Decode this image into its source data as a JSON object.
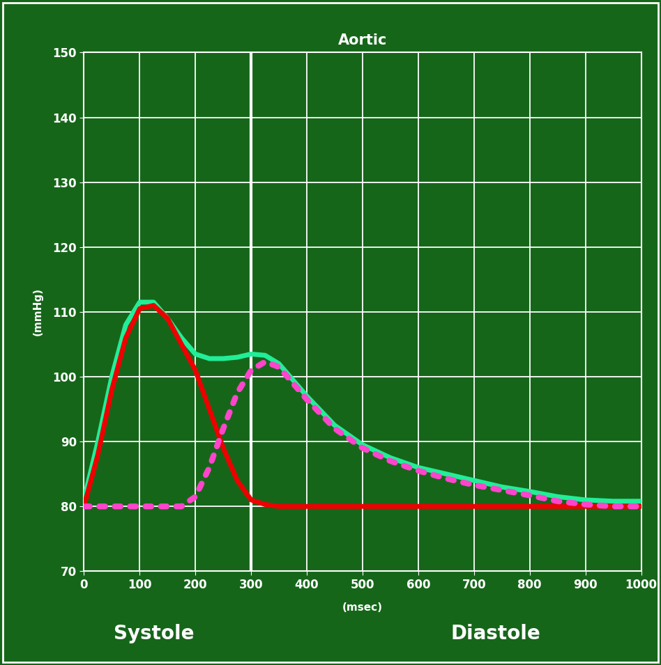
{
  "chart_data": {
    "type": "line",
    "title": "Aortic",
    "x_label": "(msec)",
    "y_label": "(mmHg)",
    "annotations": [
      "Systole",
      "Diastole"
    ],
    "vlines": [
      300
    ],
    "xlim": [
      0,
      1000
    ],
    "xticks": [
      0,
      100,
      200,
      300,
      400,
      500,
      600,
      700,
      800,
      900,
      1000
    ],
    "ylim": [
      70,
      150
    ],
    "yticks": [
      70,
      80,
      90,
      100,
      110,
      120,
      130,
      140,
      150
    ],
    "grid": true,
    "series": [
      {
        "color": "#22ee99",
        "line_style": "solid",
        "x": [
          0,
          25,
          50,
          75,
          100,
          125,
          150,
          175,
          200,
          225,
          250,
          275,
          300,
          325,
          350,
          400,
          450,
          500,
          550,
          600,
          650,
          700,
          750,
          800,
          850,
          900,
          950,
          1000
        ],
        "values": [
          81,
          90,
          100,
          108,
          111.5,
          111.5,
          109,
          106,
          103.5,
          102.8,
          102.8,
          103,
          103.5,
          103.3,
          102,
          97,
          92.5,
          89.5,
          87.5,
          86,
          85,
          84,
          83,
          82.3,
          81.5,
          81,
          80.8,
          80.8
        ]
      },
      {
        "color": "#ee0000",
        "line_style": "solid",
        "x": [
          0,
          25,
          50,
          75,
          100,
          125,
          150,
          175,
          200,
          225,
          250,
          275,
          300,
          325,
          350,
          400,
          500,
          600,
          700,
          800,
          900,
          1000
        ],
        "values": [
          80,
          88,
          98,
          106,
          110.5,
          111,
          109,
          105,
          101,
          95,
          89,
          84,
          81,
          80.3,
          80,
          80,
          80,
          80,
          80,
          80,
          80,
          80
        ]
      },
      {
        "color": "#ff44cc",
        "line_style": "dotted",
        "x": [
          0,
          50,
          100,
          150,
          175,
          200,
          225,
          250,
          275,
          300,
          325,
          350,
          400,
          450,
          500,
          550,
          600,
          650,
          700,
          750,
          800,
          850,
          900,
          950,
          1000
        ],
        "values": [
          80,
          80,
          80,
          80,
          80,
          81.5,
          86,
          92,
          97.5,
          101,
          102.3,
          101.5,
          96.5,
          92,
          89,
          87,
          85.5,
          84.3,
          83.3,
          82.5,
          81.7,
          80.8,
          80.3,
          80,
          80
        ]
      }
    ]
  }
}
